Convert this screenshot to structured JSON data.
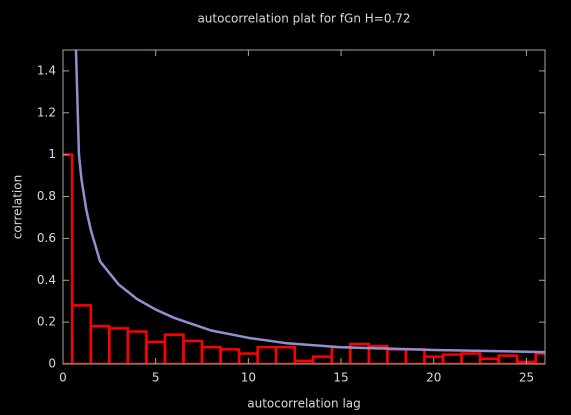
{
  "chart_data": {
    "type": "bar",
    "title": "autocorrelation plat for fGn H=0.72",
    "xlabel": "autocorrelation lag",
    "ylabel": "correlation",
    "xlim": [
      0,
      26
    ],
    "ylim": [
      0,
      1.5
    ],
    "xticks": [
      0,
      5,
      10,
      15,
      20,
      25
    ],
    "yticks": [
      0,
      0.2,
      0.4,
      0.6,
      0.8,
      1,
      1.2,
      1.4
    ],
    "grid": false,
    "series": [
      {
        "type": "bar",
        "color": "#ff0000",
        "x": [
          0,
          1,
          2,
          3,
          4,
          5,
          6,
          7,
          8,
          9,
          10,
          11,
          12,
          13,
          14,
          15,
          16,
          17,
          18,
          19,
          20,
          21,
          22,
          23,
          24,
          25,
          26
        ],
        "values": [
          1.0,
          0.28,
          0.18,
          0.17,
          0.155,
          0.105,
          0.14,
          0.11,
          0.08,
          0.07,
          0.05,
          0.08,
          0.08,
          0.015,
          0.035,
          0.08,
          0.095,
          0.085,
          0.07,
          0.07,
          0.035,
          0.045,
          0.05,
          0.025,
          0.04,
          0.01,
          0.05
        ]
      },
      {
        "type": "line",
        "color": "#9090d0",
        "x": [
          0.7,
          0.86,
          1,
          1.25,
          1.5,
          2,
          3,
          4,
          5,
          6,
          8,
          10,
          12,
          15,
          20,
          26
        ],
        "values": [
          1.5,
          1.0,
          0.88,
          0.74,
          0.64,
          0.49,
          0.38,
          0.31,
          0.26,
          0.22,
          0.16,
          0.125,
          0.1,
          0.08,
          0.067,
          0.057
        ]
      }
    ]
  }
}
